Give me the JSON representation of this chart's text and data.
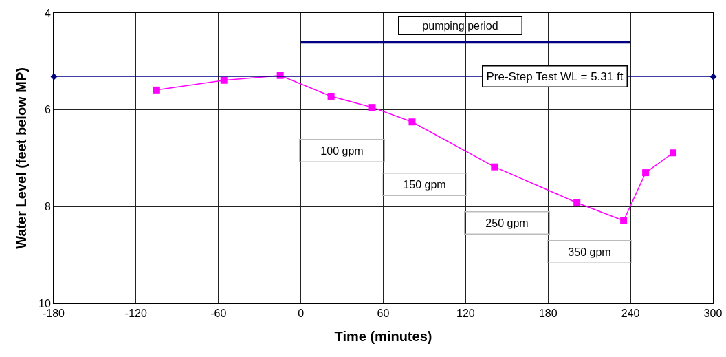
{
  "chart_data": {
    "type": "line",
    "xlabel": "Time (minutes)",
    "ylabel": "Water Level (feet below MP)",
    "xlim": [
      -180,
      300
    ],
    "xticks": [
      -180,
      -120,
      -60,
      0,
      60,
      120,
      180,
      240,
      300
    ],
    "ylim": [
      10,
      4
    ],
    "yticks": [
      4,
      6,
      8,
      10
    ],
    "grid": true,
    "marker": "square",
    "series": [
      {
        "x": [
          -105,
          -56,
          -15,
          22,
          52,
          81,
          141,
          201,
          235,
          251,
          271
        ],
        "color": "#ff00ff",
        "values": [
          5.59,
          5.39,
          5.29,
          5.72,
          5.95,
          6.25,
          7.18,
          7.92,
          8.29,
          7.3,
          6.89
        ]
      },
      {
        "x": [
          0,
          240
        ],
        "color": "#000080",
        "values": [
          4.6,
          4.6
        ],
        "marker": "none"
      }
    ],
    "ref_lines": [
      {
        "axis": "y",
        "value": 5.31,
        "label": "Pre-Step Test WL = 5.31 ft",
        "color": "#000080"
      }
    ],
    "annotations": [
      "pumping period",
      "100 gpm",
      "150 gpm",
      "250 gpm",
      "350 gpm"
    ]
  }
}
